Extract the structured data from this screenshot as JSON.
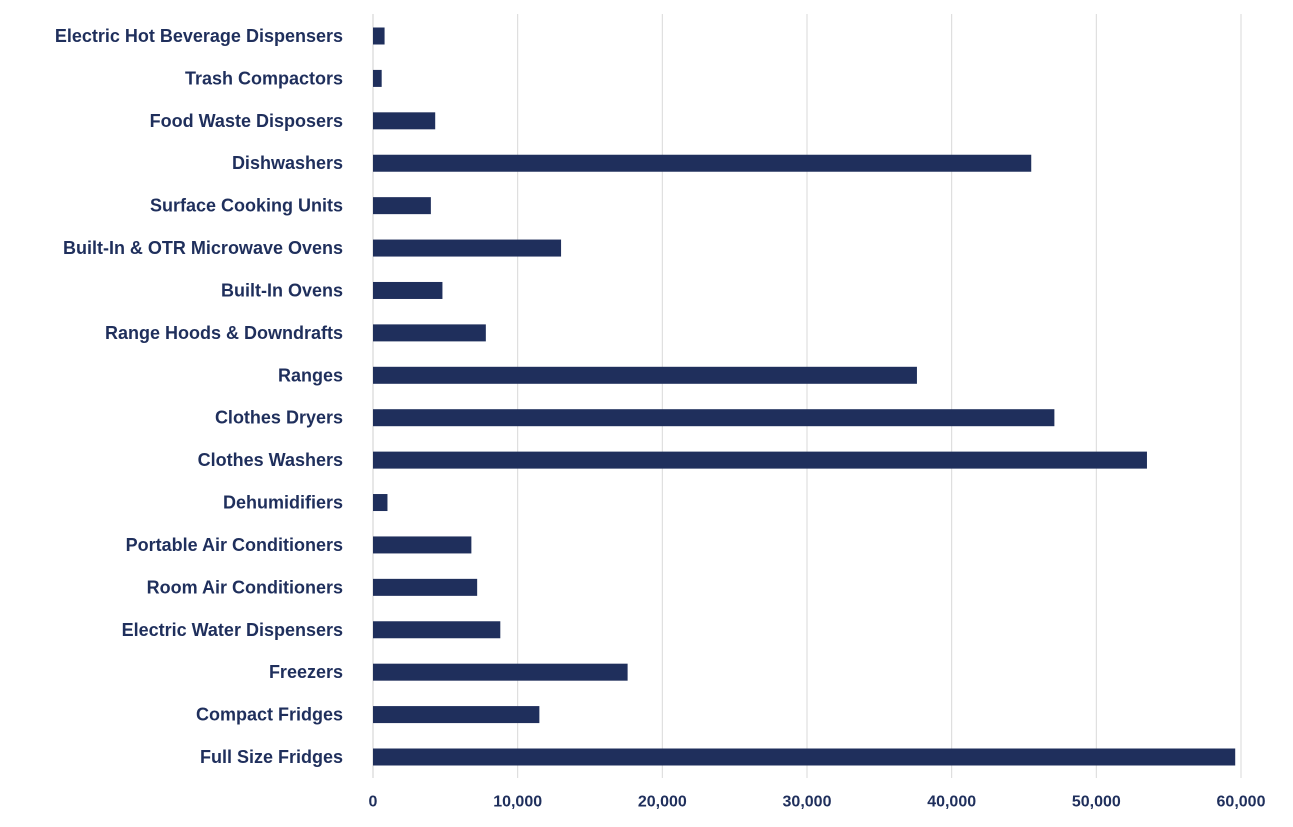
{
  "chart_data": {
    "type": "bar",
    "orientation": "horizontal",
    "categories": [
      "Electric Hot Beverage Dispensers",
      "Trash Compactors",
      "Food Waste Disposers",
      "Dishwashers",
      "Surface Cooking Units",
      "Built-In & OTR Microwave Ovens",
      "Built-In Ovens",
      "Range Hoods & Downdrafts",
      "Ranges",
      "Clothes Dryers",
      "Clothes Washers",
      "Dehumidifiers",
      "Portable Air Conditioners",
      "Room Air Conditioners",
      "Electric Water Dispensers",
      "Freezers",
      "Compact Fridges",
      "Full Size Fridges"
    ],
    "values": [
      800,
      600,
      4300,
      45500,
      4000,
      13000,
      4800,
      7800,
      37600,
      47100,
      53500,
      1000,
      6800,
      7200,
      8800,
      17600,
      11500,
      59600
    ],
    "xlim": [
      0,
      60000
    ],
    "xticks": [
      0,
      10000,
      20000,
      30000,
      40000,
      50000,
      60000
    ],
    "xtick_labels": [
      "0",
      "10,000",
      "20,000",
      "30,000",
      "40,000",
      "50,000",
      "60,000"
    ],
    "grid": "vertical",
    "title": "",
    "xlabel": "",
    "ylabel": "",
    "colors": {
      "bar": "#1f2f5c",
      "gridline": "#d9d9d9",
      "axis": "#cfcfcf",
      "text": "#1f2f5c"
    }
  }
}
